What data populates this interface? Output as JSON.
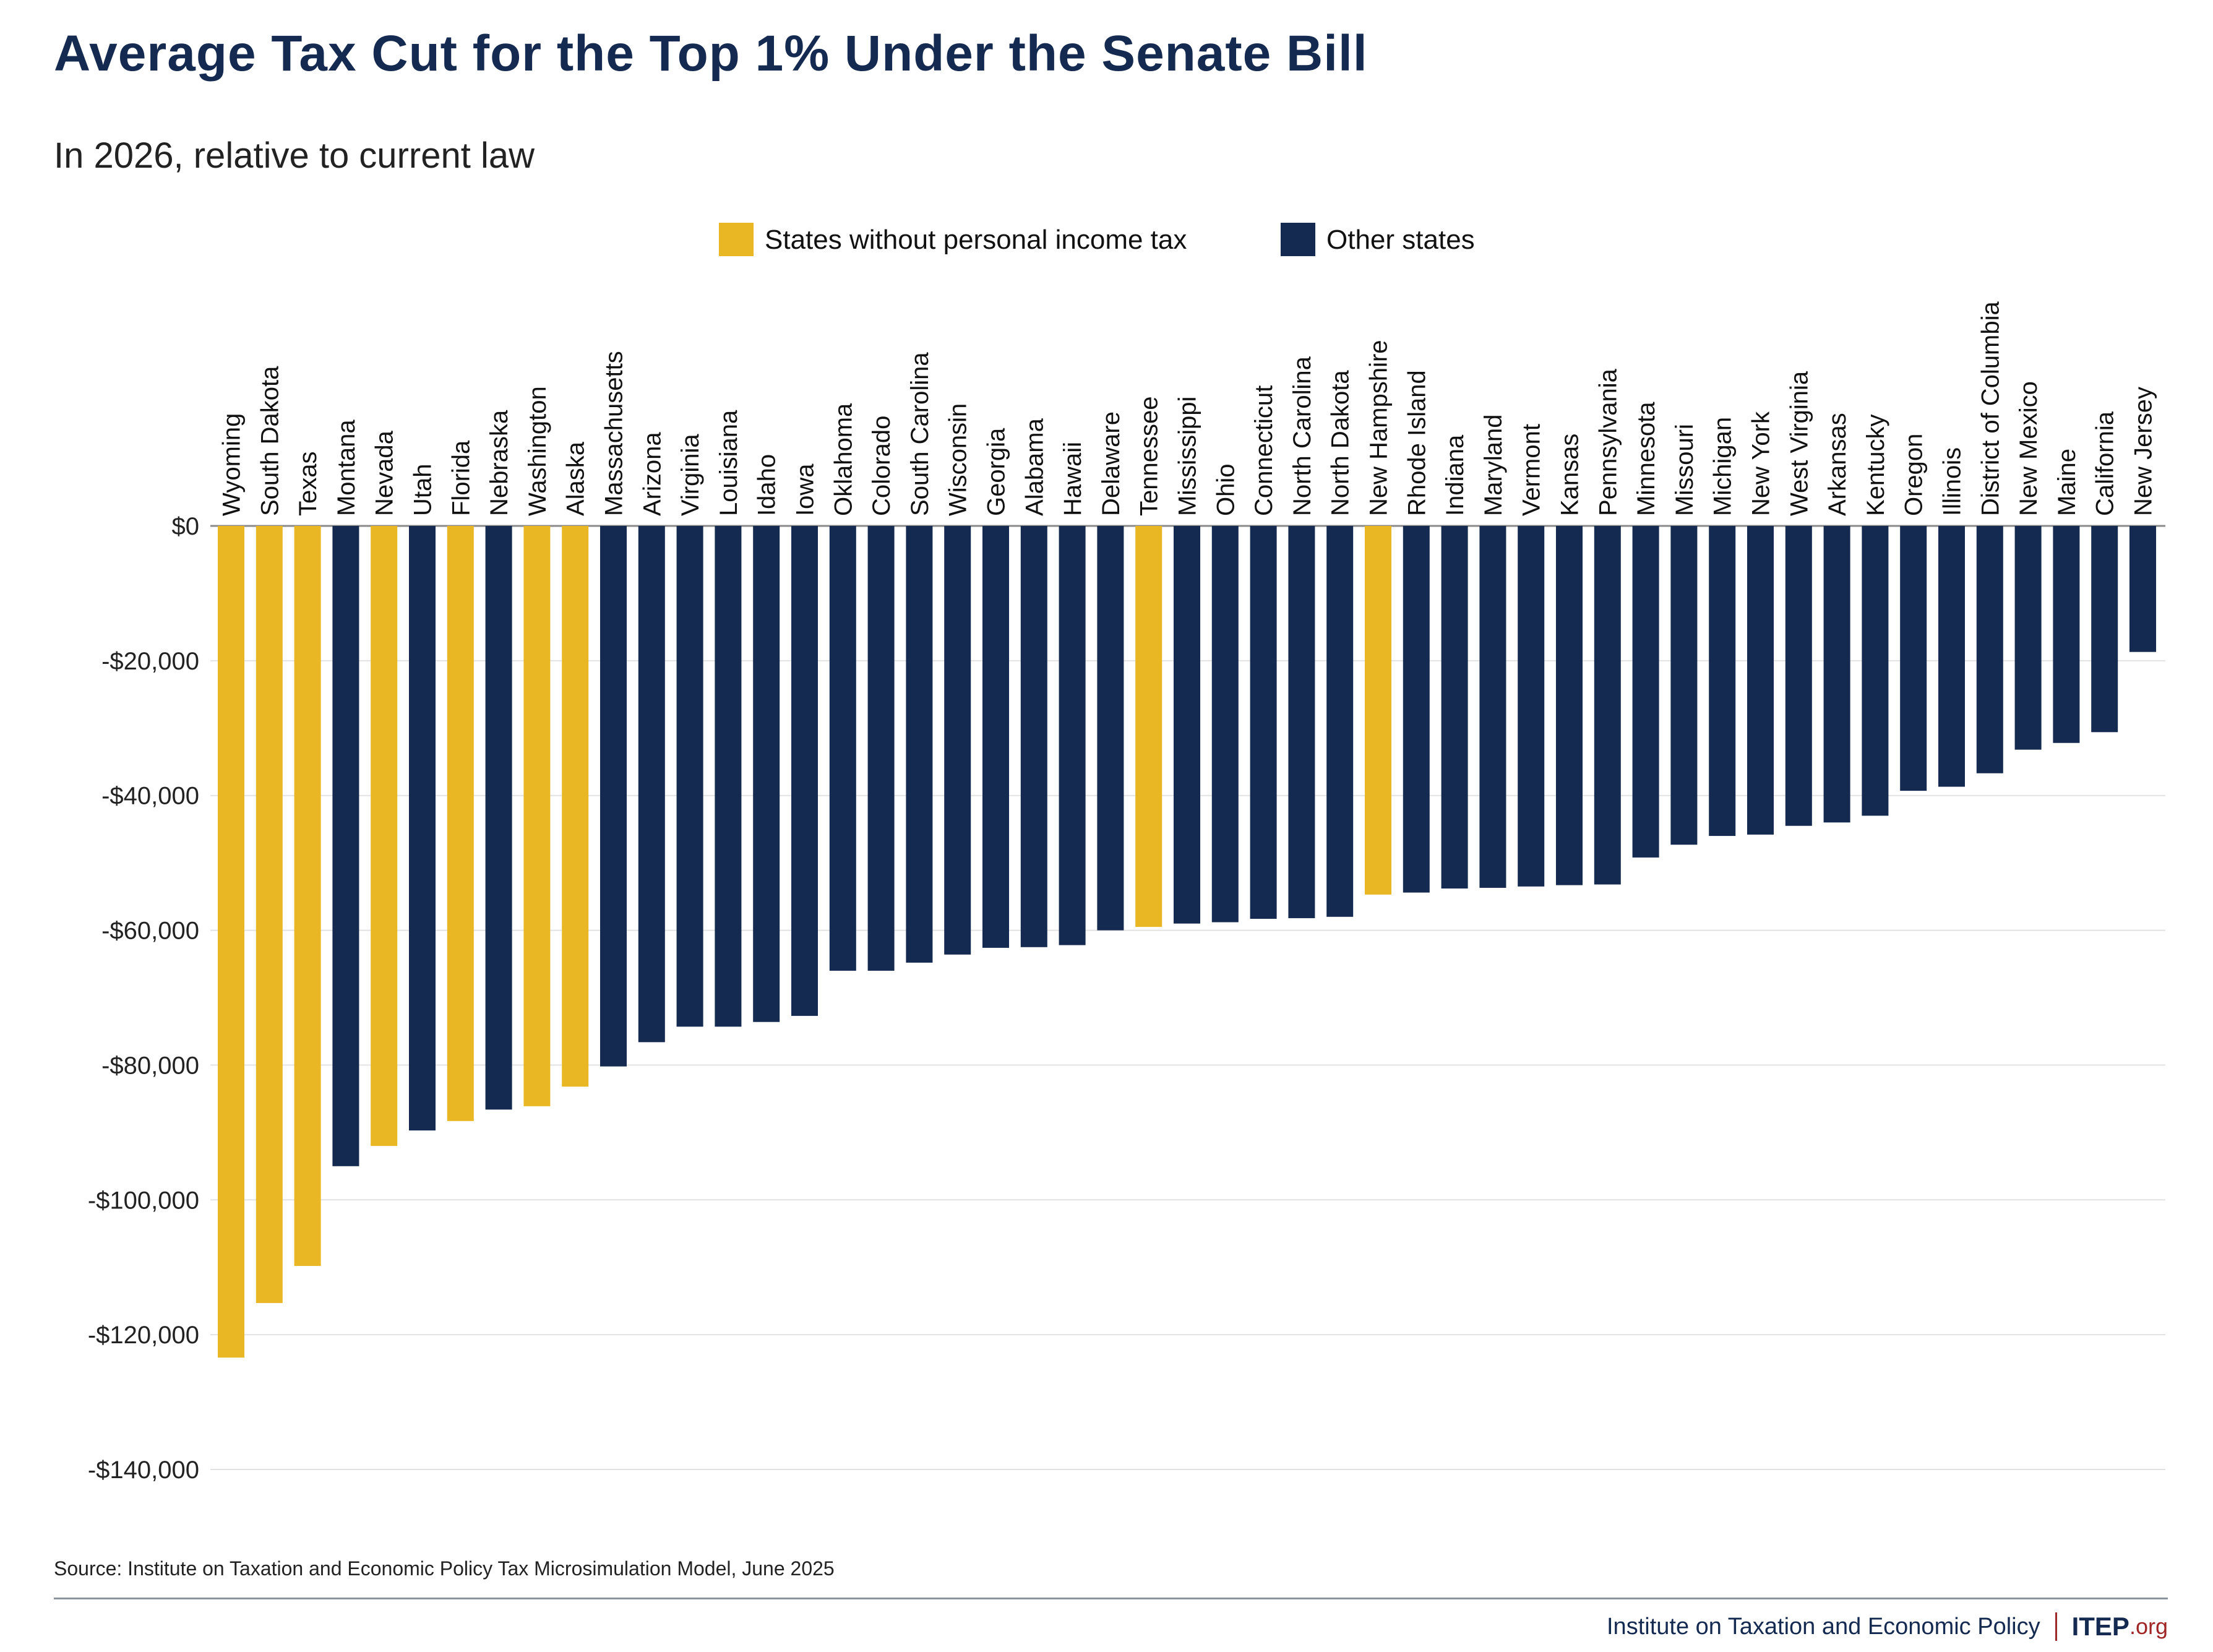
{
  "title": "Average Tax Cut for the Top 1% Under the Senate Bill",
  "subtitle": "In 2026, relative to current law",
  "source": "Source: Institute on Taxation and Economic Policy Tax Microsimulation Model, June 2025",
  "footer": {
    "org_name": "Institute on Taxation and Economic Policy",
    "brand": "ITEP",
    "brand_suffix": ".org"
  },
  "colors": {
    "no_income_tax": "#e8b723",
    "other": "#142a50",
    "title": "#142a50",
    "brand_accent": "#a02626"
  },
  "chart_data": {
    "type": "bar",
    "ylim": [
      -140000,
      0
    ],
    "y_ticks": [
      "$0",
      "-$20,000",
      "-$40,000",
      "-$60,000",
      "-$80,000",
      "-$100,000",
      "-$120,000",
      "-$140,000"
    ],
    "y_tick_values": [
      0,
      -20000,
      -40000,
      -60000,
      -80000,
      -100000,
      -120000,
      -140000
    ],
    "grid": true,
    "legend": {
      "placement": "top-center",
      "entries": [
        {
          "key": "no_income_tax",
          "label": "States without personal income tax",
          "color": "#e8b723"
        },
        {
          "key": "other",
          "label": "Other states",
          "color": "#142a50"
        }
      ]
    },
    "categories": [
      "Wyoming",
      "South Dakota",
      "Texas",
      "Montana",
      "Nevada",
      "Utah",
      "Florida",
      "Nebraska",
      "Washington",
      "Alaska",
      "Massachusetts",
      "Arizona",
      "Virginia",
      "Louisiana",
      "Idaho",
      "Iowa",
      "Oklahoma",
      "Colorado",
      "South Carolina",
      "Wisconsin",
      "Georgia",
      "Alabama",
      "Hawaii",
      "Delaware",
      "Tennessee",
      "Mississippi",
      "Ohio",
      "Connecticut",
      "North Carolina",
      "North Dakota",
      "New Hampshire",
      "Rhode Island",
      "Indiana",
      "Maryland",
      "Vermont",
      "Kansas",
      "Pennsylvania",
      "Minnesota",
      "Missouri",
      "Michigan",
      "New York",
      "West Virginia",
      "Arkansas",
      "Kentucky",
      "Oregon",
      "Illinois",
      "District of Columbia",
      "New Mexico",
      "Maine",
      "California",
      "New Jersey"
    ],
    "values": [
      -123400,
      -115300,
      -109800,
      -95000,
      -92000,
      -89700,
      -88300,
      -86600,
      -86100,
      -83200,
      -80200,
      -76600,
      -74300,
      -74300,
      -73600,
      -72700,
      -66000,
      -66000,
      -64800,
      -63600,
      -62600,
      -62500,
      -62200,
      -60000,
      -59500,
      -59000,
      -58800,
      -58300,
      -58200,
      -58000,
      -54700,
      -54400,
      -53800,
      -53700,
      -53500,
      -53300,
      -53200,
      -49200,
      -47300,
      -46000,
      -45800,
      -44500,
      -44000,
      -43000,
      -39300,
      -38700,
      -36700,
      -33200,
      -32200,
      -30600,
      -18700
    ],
    "group": [
      "no_income_tax",
      "no_income_tax",
      "no_income_tax",
      "other",
      "no_income_tax",
      "other",
      "no_income_tax",
      "other",
      "no_income_tax",
      "no_income_tax",
      "other",
      "other",
      "other",
      "other",
      "other",
      "other",
      "other",
      "other",
      "other",
      "other",
      "other",
      "other",
      "other",
      "other",
      "no_income_tax",
      "other",
      "other",
      "other",
      "other",
      "other",
      "no_income_tax",
      "other",
      "other",
      "other",
      "other",
      "other",
      "other",
      "other",
      "other",
      "other",
      "other",
      "other",
      "other",
      "other",
      "other",
      "other",
      "other",
      "other",
      "other",
      "other",
      "other"
    ]
  }
}
